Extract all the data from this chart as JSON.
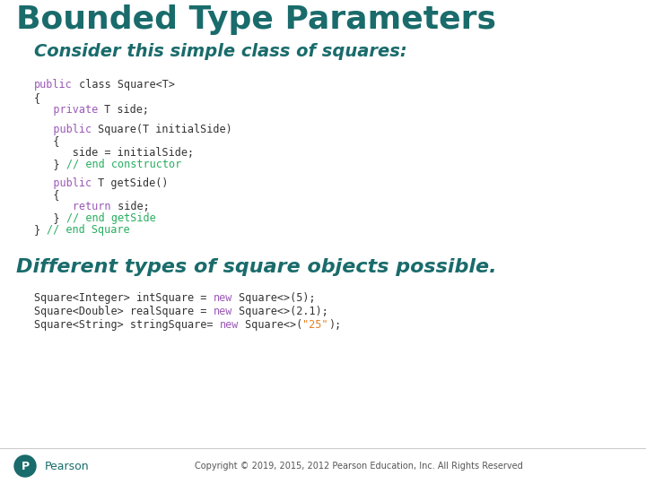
{
  "title": "Bounded Type Parameters",
  "subtitle": "Consider this simple class of squares:",
  "title_color": "#1a6b6b",
  "subtitle_color": "#1a6b6b",
  "bg_color": "#ffffff",
  "bottom_heading": "Different types of square objects possible.",
  "bottom_heading_color": "#1a6b6b",
  "footer_text": "Copyright © 2019, 2015, 2012 Pearson Education, Inc. All Rights Reserved",
  "footer_color": "#555555",
  "pearson_color": "#1a6b6b",
  "code_keyword_color": "#9b59b6",
  "code_normal_color": "#333333",
  "code_comment_color": "#27ae60",
  "code_string_color": "#e67e22"
}
